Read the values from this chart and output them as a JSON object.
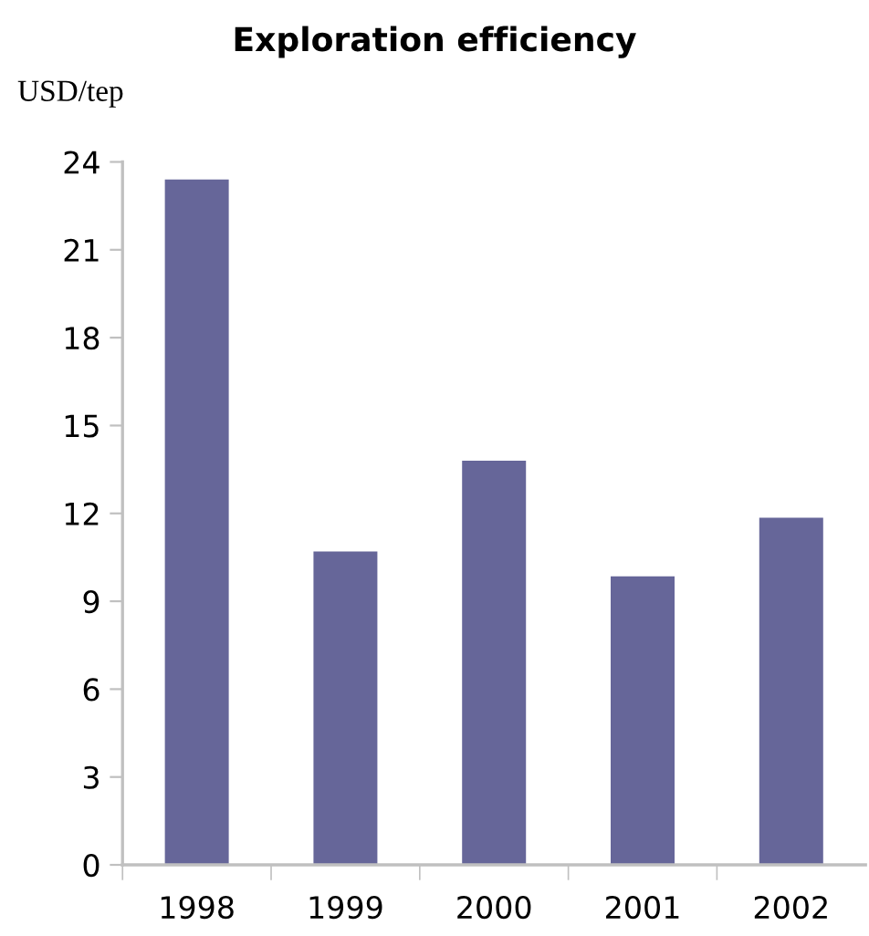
{
  "chart_data": {
    "type": "bar",
    "title": "Exploration efficiency",
    "ylabel": "USD/tep",
    "categories": [
      "1998",
      "1999",
      "2000",
      "2001",
      "2002"
    ],
    "values": [
      23.4,
      10.7,
      13.8,
      9.85,
      11.85
    ],
    "color": "#666699",
    "ylim": [
      0,
      24
    ],
    "yticks": [
      0,
      3,
      6,
      9,
      12,
      15,
      18,
      21,
      24
    ],
    "grid": false,
    "legend": false
  }
}
